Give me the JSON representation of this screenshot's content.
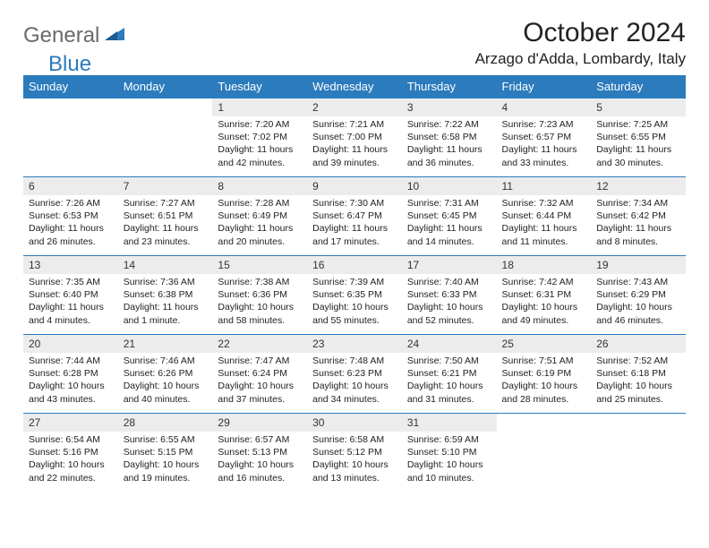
{
  "logo": {
    "word1": "General",
    "word2": "Blue"
  },
  "title": "October 2024",
  "location": "Arzago d'Adda, Lombardy, Italy",
  "colors": {
    "header_bg": "#2b7bbd",
    "header_text": "#ffffff",
    "daynum_bg": "#ececec",
    "border": "#2b7bbd",
    "logo_gray": "#6a6a6a",
    "logo_blue": "#2b7bbd"
  },
  "weekdays": [
    "Sunday",
    "Monday",
    "Tuesday",
    "Wednesday",
    "Thursday",
    "Friday",
    "Saturday"
  ],
  "weeks": [
    [
      null,
      null,
      {
        "n": "1",
        "sr": "7:20 AM",
        "ss": "7:02 PM",
        "dl": "11 hours and 42 minutes."
      },
      {
        "n": "2",
        "sr": "7:21 AM",
        "ss": "7:00 PM",
        "dl": "11 hours and 39 minutes."
      },
      {
        "n": "3",
        "sr": "7:22 AM",
        "ss": "6:58 PM",
        "dl": "11 hours and 36 minutes."
      },
      {
        "n": "4",
        "sr": "7:23 AM",
        "ss": "6:57 PM",
        "dl": "11 hours and 33 minutes."
      },
      {
        "n": "5",
        "sr": "7:25 AM",
        "ss": "6:55 PM",
        "dl": "11 hours and 30 minutes."
      }
    ],
    [
      {
        "n": "6",
        "sr": "7:26 AM",
        "ss": "6:53 PM",
        "dl": "11 hours and 26 minutes."
      },
      {
        "n": "7",
        "sr": "7:27 AM",
        "ss": "6:51 PM",
        "dl": "11 hours and 23 minutes."
      },
      {
        "n": "8",
        "sr": "7:28 AM",
        "ss": "6:49 PM",
        "dl": "11 hours and 20 minutes."
      },
      {
        "n": "9",
        "sr": "7:30 AM",
        "ss": "6:47 PM",
        "dl": "11 hours and 17 minutes."
      },
      {
        "n": "10",
        "sr": "7:31 AM",
        "ss": "6:45 PM",
        "dl": "11 hours and 14 minutes."
      },
      {
        "n": "11",
        "sr": "7:32 AM",
        "ss": "6:44 PM",
        "dl": "11 hours and 11 minutes."
      },
      {
        "n": "12",
        "sr": "7:34 AM",
        "ss": "6:42 PM",
        "dl": "11 hours and 8 minutes."
      }
    ],
    [
      {
        "n": "13",
        "sr": "7:35 AM",
        "ss": "6:40 PM",
        "dl": "11 hours and 4 minutes."
      },
      {
        "n": "14",
        "sr": "7:36 AM",
        "ss": "6:38 PM",
        "dl": "11 hours and 1 minute."
      },
      {
        "n": "15",
        "sr": "7:38 AM",
        "ss": "6:36 PM",
        "dl": "10 hours and 58 minutes."
      },
      {
        "n": "16",
        "sr": "7:39 AM",
        "ss": "6:35 PM",
        "dl": "10 hours and 55 minutes."
      },
      {
        "n": "17",
        "sr": "7:40 AM",
        "ss": "6:33 PM",
        "dl": "10 hours and 52 minutes."
      },
      {
        "n": "18",
        "sr": "7:42 AM",
        "ss": "6:31 PM",
        "dl": "10 hours and 49 minutes."
      },
      {
        "n": "19",
        "sr": "7:43 AM",
        "ss": "6:29 PM",
        "dl": "10 hours and 46 minutes."
      }
    ],
    [
      {
        "n": "20",
        "sr": "7:44 AM",
        "ss": "6:28 PM",
        "dl": "10 hours and 43 minutes."
      },
      {
        "n": "21",
        "sr": "7:46 AM",
        "ss": "6:26 PM",
        "dl": "10 hours and 40 minutes."
      },
      {
        "n": "22",
        "sr": "7:47 AM",
        "ss": "6:24 PM",
        "dl": "10 hours and 37 minutes."
      },
      {
        "n": "23",
        "sr": "7:48 AM",
        "ss": "6:23 PM",
        "dl": "10 hours and 34 minutes."
      },
      {
        "n": "24",
        "sr": "7:50 AM",
        "ss": "6:21 PM",
        "dl": "10 hours and 31 minutes."
      },
      {
        "n": "25",
        "sr": "7:51 AM",
        "ss": "6:19 PM",
        "dl": "10 hours and 28 minutes."
      },
      {
        "n": "26",
        "sr": "7:52 AM",
        "ss": "6:18 PM",
        "dl": "10 hours and 25 minutes."
      }
    ],
    [
      {
        "n": "27",
        "sr": "6:54 AM",
        "ss": "5:16 PM",
        "dl": "10 hours and 22 minutes."
      },
      {
        "n": "28",
        "sr": "6:55 AM",
        "ss": "5:15 PM",
        "dl": "10 hours and 19 minutes."
      },
      {
        "n": "29",
        "sr": "6:57 AM",
        "ss": "5:13 PM",
        "dl": "10 hours and 16 minutes."
      },
      {
        "n": "30",
        "sr": "6:58 AM",
        "ss": "5:12 PM",
        "dl": "10 hours and 13 minutes."
      },
      {
        "n": "31",
        "sr": "6:59 AM",
        "ss": "5:10 PM",
        "dl": "10 hours and 10 minutes."
      },
      null,
      null
    ]
  ],
  "labels": {
    "sunrise": "Sunrise:",
    "sunset": "Sunset:",
    "daylight": "Daylight:"
  }
}
